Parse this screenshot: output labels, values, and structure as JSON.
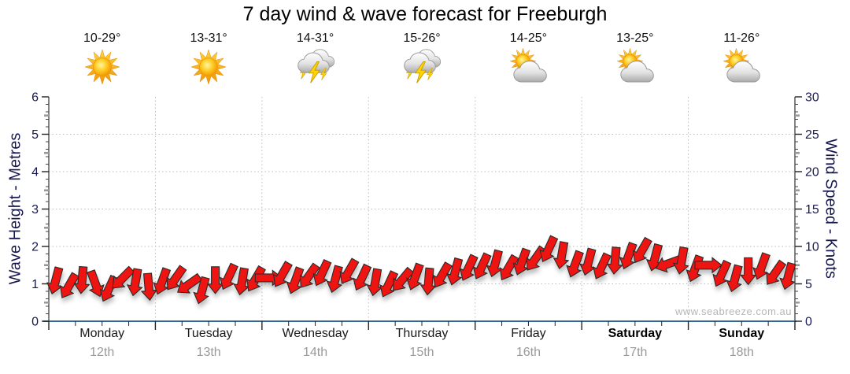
{
  "title": "7 day wind & wave forecast for Freeburgh",
  "watermark": "www.seabreeze.com.au",
  "axes": {
    "left_title": "Wave Height - Metres",
    "right_title": "Wind Speed - Knots"
  },
  "days": [
    {
      "name": "Monday",
      "date": "12th",
      "temp": "10-29°",
      "icon": "sunny",
      "weekend": false
    },
    {
      "name": "Tuesday",
      "date": "13th",
      "temp": "13-31°",
      "icon": "sunny",
      "weekend": false
    },
    {
      "name": "Wednesday",
      "date": "14th",
      "temp": "14-31°",
      "icon": "storm",
      "weekend": false
    },
    {
      "name": "Thursday",
      "date": "15th",
      "temp": "15-26°",
      "icon": "storm",
      "weekend": false
    },
    {
      "name": "Friday",
      "date": "16th",
      "temp": "14-25°",
      "icon": "partly-cloudy",
      "weekend": false
    },
    {
      "name": "Saturday",
      "date": "17th",
      "temp": "13-25°",
      "icon": "partly-cloudy",
      "weekend": true
    },
    {
      "name": "Sunday",
      "date": "18th",
      "temp": "11-26°",
      "icon": "partly-cloudy",
      "weekend": true
    }
  ],
  "chart_data": {
    "type": "scatter",
    "marker": "wind-direction-arrow",
    "title": "7 day wind & wave forecast for Freeburgh",
    "x": "56 three-hour steps, Monday 12th 00:00 through Sunday 18th 21:00",
    "points_per_day": 8,
    "categories": [
      "Monday 12th",
      "Tuesday 13th",
      "Wednesday 14th",
      "Thursday 15th",
      "Friday 16th",
      "Saturday 17th",
      "Sunday 18th"
    ],
    "series": [
      {
        "name": "Wind Speed",
        "unit": "knots",
        "color": "#ee1411",
        "values": [
          5.4,
          4.7,
          5.5,
          5.0,
          4.3,
          5.7,
          5.2,
          4.6,
          5.3,
          5.7,
          4.9,
          4.1,
          5.5,
          5.9,
          5.3,
          5.6,
          5.8,
          6.2,
          5.4,
          6.0,
          6.4,
          5.6,
          6.6,
          5.8,
          5.2,
          4.9,
          5.5,
          5.9,
          5.3,
          6.1,
          6.6,
          7.1,
          7.3,
          7.7,
          7.1,
          7.9,
          8.3,
          9.6,
          8.8,
          7.6,
          7.9,
          7.3,
          8.1,
          8.7,
          9.4,
          8.5,
          7.7,
          8.1,
          7.0,
          7.5,
          6.3,
          5.7,
          6.7,
          7.3,
          6.4,
          6.0
        ],
        "direction_deg": [
          195,
          210,
          185,
          160,
          205,
          225,
          190,
          175,
          200,
          215,
          235,
          195,
          180,
          205,
          190,
          210,
          90,
          210,
          200,
          215,
          205,
          195,
          210,
          205,
          190,
          205,
          220,
          200,
          185,
          210,
          195,
          205,
          205,
          195,
          210,
          200,
          215,
          205,
          190,
          200,
          195,
          205,
          185,
          200,
          210,
          195,
          250,
          190,
          200,
          90,
          205,
          195,
          180,
          200,
          215,
          195
        ]
      }
    ],
    "left_axis": {
      "label": "Wave Height - Metres",
      "range": [
        0,
        6
      ],
      "ticks": [
        0,
        1,
        2,
        3,
        4,
        5,
        6
      ]
    },
    "right_axis": {
      "label": "Wind Speed - Knots",
      "range": [
        0,
        30
      ],
      "ticks": [
        0,
        5,
        10,
        15,
        20,
        25,
        30
      ]
    },
    "x_axis": {
      "day_labels": [
        "Monday",
        "Tuesday",
        "Wednesday",
        "Thursday",
        "Friday",
        "Saturday",
        "Sunday"
      ],
      "date_labels": [
        "12th",
        "13th",
        "14th",
        "15th",
        "16th",
        "17th",
        "18th"
      ]
    },
    "grid": {
      "horizontal": "dotted grey at 1-5 metres",
      "vertical": "dotted grey at day boundaries"
    },
    "legend": "none"
  },
  "colors": {
    "arrow_fill": "#ee1411",
    "arrow_stroke": "#2b2b2b",
    "axis_text": "#17174e",
    "baseline": "#336699",
    "grid": "#bdbdbd",
    "date_text": "#9a9a9a",
    "watermark_text": "#b6b6b6"
  }
}
